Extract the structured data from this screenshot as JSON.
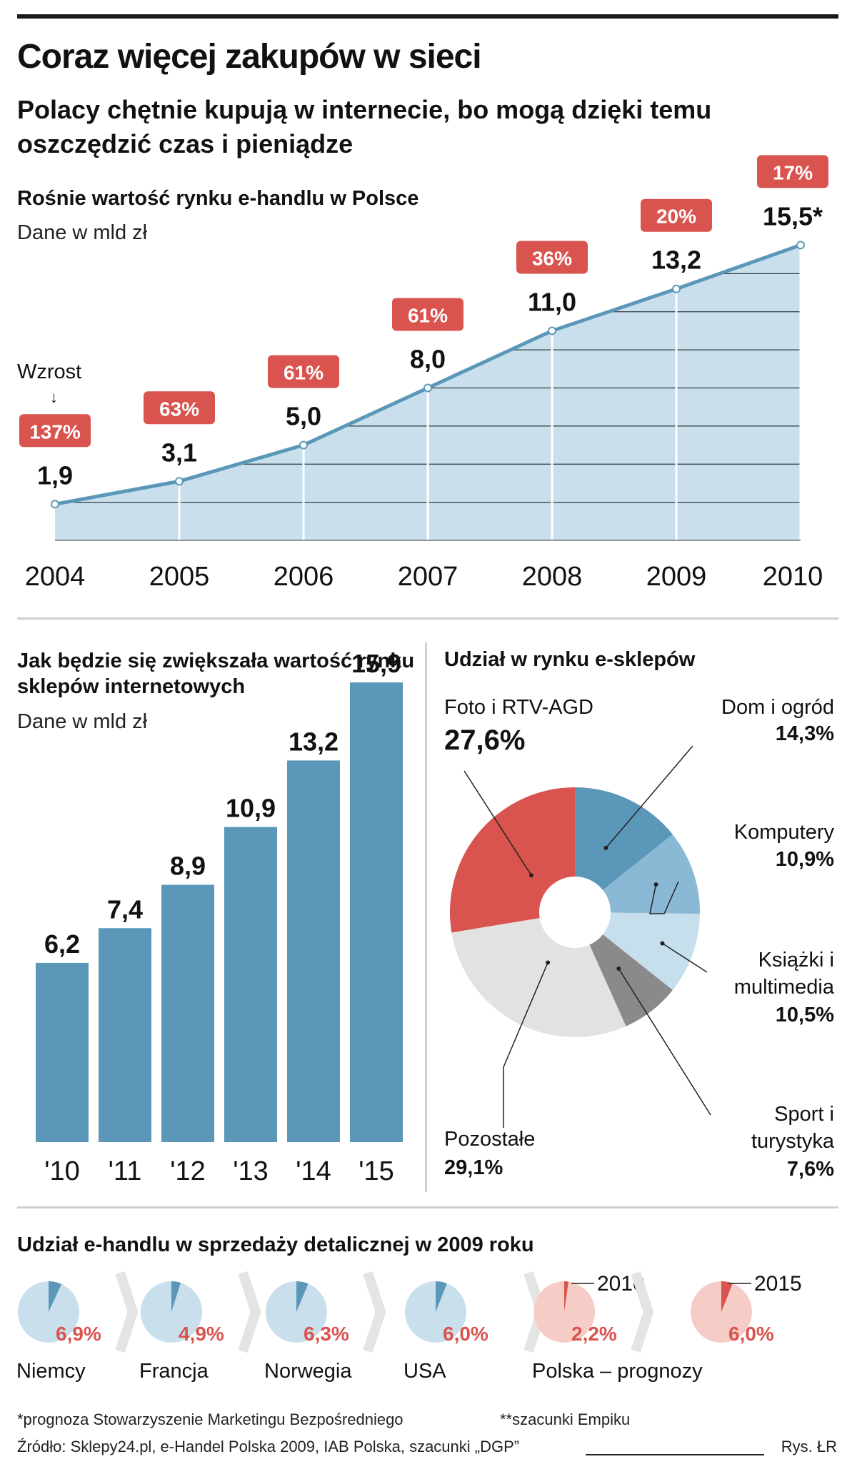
{
  "title": "Coraz więcej zakupów w sieci",
  "subtitle": "Polacy chętnie kupują w internecie, bo mogą dzięki temu oszczędzić czas i pieniądze",
  "chart_data": [
    {
      "type": "area",
      "title": "Rośnie wartość rynku e-handlu w Polsce",
      "unit": "Dane w mld zł",
      "growth_label": "Wzrost",
      "x": [
        "2004",
        "2005",
        "2006",
        "2007",
        "2008",
        "2009",
        "2010"
      ],
      "value_labels": [
        "1,9",
        "3,1",
        "5,0",
        "8,0",
        "11,0",
        "13,2",
        "15,5*"
      ],
      "values": [
        1.9,
        3.1,
        5.0,
        8.0,
        11.0,
        13.2,
        15.5
      ],
      "growth": [
        "137%",
        "63%",
        "61%",
        "61%",
        "36%",
        "20%",
        "17%"
      ],
      "ylim": [
        0,
        16
      ]
    },
    {
      "type": "bar",
      "title": "Jak będzie się zwiększała wartość rynku sklepów internetowych",
      "unit": "Dane w mld zł",
      "categories": [
        "'10",
        "'11",
        "'12",
        "'13",
        "'14",
        "'15"
      ],
      "value_labels": [
        "6,2",
        "7,4",
        "8,9",
        "10,9",
        "13,2",
        "15,9"
      ],
      "values": [
        6.2,
        7.4,
        8.9,
        10.9,
        13.2,
        15.9
      ],
      "ylim": [
        0,
        16
      ]
    },
    {
      "type": "pie",
      "title": "Udział w rynku e-sklepów",
      "slices": [
        {
          "label": "Dom i ogród",
          "value": 14.3,
          "value_label": "14,3%",
          "color": "#5b97b8"
        },
        {
          "label": "Komputery",
          "value": 10.9,
          "value_label": "10,9%",
          "color": "#8ab9d5"
        },
        {
          "label": "Książki i multimedia",
          "value": 10.5,
          "value_label": "10,5%",
          "color": "#c6dfec"
        },
        {
          "label": "Sport i turystyka",
          "value": 7.6,
          "value_label": "7,6%",
          "color": "#8a8a8a"
        },
        {
          "label": "Pozostałe",
          "value": 29.1,
          "value_label": "29,1%",
          "color": "#e2e2e2"
        },
        {
          "label": "Foto i RTV-AGD",
          "value": 27.6,
          "value_label": "27,6%",
          "color": "#d9534f"
        }
      ]
    },
    {
      "type": "pie",
      "title": "Udział e-handlu w sprzedaży detalicznej w 2009 roku",
      "items": [
        {
          "label": "Niemcy",
          "value": 6.9,
          "value_label": "6,9%",
          "forecast": false
        },
        {
          "label": "Francja",
          "value": 4.9,
          "value_label": "4,9%",
          "forecast": false
        },
        {
          "label": "Norwegia",
          "value": 6.3,
          "value_label": "6,3%",
          "forecast": false
        },
        {
          "label": "USA",
          "value": 6.0,
          "value_label": "6,0%",
          "forecast": false
        },
        {
          "label": "Polska – prognozy",
          "value": 2.2,
          "value_label": "2,2%",
          "forecast": true,
          "year": "2010"
        },
        {
          "label": "",
          "value": 6.0,
          "value_label": "6,0%",
          "forecast": true,
          "year": "2015"
        }
      ]
    }
  ],
  "colors": {
    "blue": "#5b97b8",
    "light_blue": "#c9e0ec",
    "red": "#d9534f",
    "pink": "#f6cdc6",
    "grey": "#e2e2e2"
  },
  "footer": {
    "note1": "*prognoza Stowarzyszenie Marketingu Bezpośredniego",
    "note2": "**szacunki Empiku",
    "source": "Źródło: Sklepy24.pl, e-Handel Polska 2009, IAB Polska, szacunki „DGP”",
    "credit": "Rys. ŁR"
  }
}
